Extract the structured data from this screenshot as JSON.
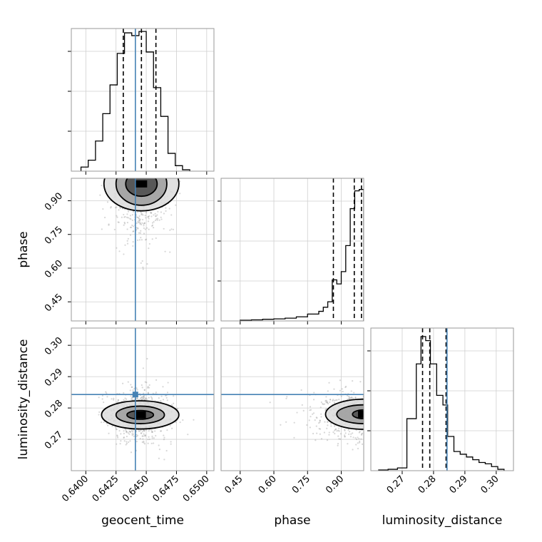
{
  "chart_data": {
    "type": "corner",
    "parameters": [
      "geocent_time",
      "phase",
      "luminosity_distance"
    ],
    "axis_labels": {
      "geocent_time": "geocent_time",
      "phase": "phase",
      "luminosity_distance": "luminosity_distance"
    },
    "ranges": {
      "geocent_time": [
        0.6388,
        0.6506
      ],
      "phase": [
        0.365,
        1.0
      ],
      "luminosity_distance": [
        0.26,
        0.3055
      ]
    },
    "ticks": {
      "geocent_time": {
        "values": [
          0.64,
          0.6425,
          0.645,
          0.6475,
          0.65
        ],
        "labels": [
          "0.6400",
          "0.6425",
          "0.6450",
          "0.6475",
          "0.6500"
        ]
      },
      "phase": {
        "values": [
          0.45,
          0.6,
          0.75,
          0.9
        ],
        "labels": [
          "0.45",
          "0.60",
          "0.75",
          "0.90"
        ]
      },
      "luminosity_distance": {
        "values": [
          0.27,
          0.28,
          0.29,
          0.3
        ],
        "labels": [
          "0.27",
          "0.28",
          "0.29",
          "0.30"
        ]
      }
    },
    "truths": {
      "geocent_time": 0.6441,
      "phase": null,
      "luminosity_distance": 0.2843
    },
    "truth_color": "#4682b4",
    "grid": true,
    "quantiles": {
      "geocent_time": [
        0.6431,
        0.6446,
        0.6458
      ],
      "phase": [
        0.865,
        0.958,
        0.99
      ],
      "luminosity_distance": [
        0.2765,
        0.2788,
        0.284
      ]
    },
    "histograms": {
      "geocent_time": {
        "edges": [
          0.6396,
          0.6402,
          0.6408,
          0.6414,
          0.642,
          0.6426,
          0.6432,
          0.6438,
          0.6444,
          0.645,
          0.6456,
          0.6462,
          0.6468,
          0.6474,
          0.648,
          0.6486
        ],
        "counts": [
          0.03,
          0.08,
          0.22,
          0.42,
          0.63,
          0.86,
          1.01,
          0.99,
          1.02,
          0.87,
          0.61,
          0.4,
          0.13,
          0.04,
          0.01
        ]
      },
      "phase": {
        "edges": [
          0.45,
          0.5,
          0.55,
          0.6,
          0.65,
          0.7,
          0.75,
          0.8,
          0.82,
          0.84,
          0.86,
          0.88,
          0.9,
          0.92,
          0.94,
          0.96,
          0.98,
          1.0
        ],
        "counts": [
          0.005,
          0.008,
          0.012,
          0.015,
          0.02,
          0.03,
          0.05,
          0.07,
          0.1,
          0.14,
          0.3,
          0.27,
          0.36,
          0.55,
          0.82,
          0.95,
          0.96
        ]
      },
      "luminosity_distance": {
        "edges": [
          0.2625,
          0.2655,
          0.2685,
          0.2715,
          0.2745,
          0.276,
          0.2775,
          0.279,
          0.281,
          0.283,
          0.2845,
          0.2865,
          0.2885,
          0.2905,
          0.2925,
          0.2945,
          0.2965,
          0.2985,
          0.3005,
          0.3025
        ],
        "counts": [
          0.005,
          0.01,
          0.02,
          0.38,
          0.78,
          0.98,
          0.95,
          0.78,
          0.55,
          0.48,
          0.25,
          0.14,
          0.12,
          0.1,
          0.08,
          0.06,
          0.05,
          0.03,
          0.01
        ]
      }
    },
    "contours_2d": {
      "phase_vs_geocent_time": {
        "center": [
          0.6446,
          0.975
        ],
        "sigma": [
          0.00095,
          0.09
        ],
        "levels": [
          [
            0.0013,
            0.055
          ],
          [
            0.0021,
            0.095
          ],
          [
            0.0031,
            0.12
          ]
        ]
      },
      "luminosity_distance_vs_geocent_time": {
        "center": [
          0.6445,
          0.2778
        ],
        "sigma": [
          0.001,
          0.003
        ],
        "levels": [
          [
            0.0011,
            0.0014
          ],
          [
            0.002,
            0.0028
          ],
          [
            0.0032,
            0.0045
          ]
        ]
      },
      "luminosity_distance_vs_phase": {
        "center": [
          1.0,
          0.278
        ],
        "sigma": [
          0.08,
          0.003
        ],
        "levels": [
          [
            0.05,
            0.0014
          ],
          [
            0.12,
            0.003
          ],
          [
            0.17,
            0.0048
          ]
        ]
      }
    }
  }
}
